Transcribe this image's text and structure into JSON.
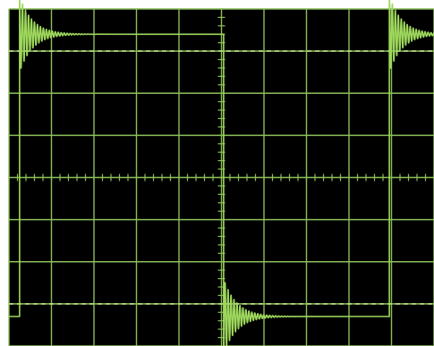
{
  "colors": {
    "background": "#000000",
    "bezel": "#ffffff",
    "grid": "#8bbf5a",
    "dashed_reference": "#b9d88a",
    "trace": "#9ed85c"
  },
  "chart_data": {
    "type": "line",
    "title": "",
    "xlabel": "",
    "ylabel": "",
    "x_divisions": 10,
    "y_divisions": 8,
    "xlim": [
      0,
      10
    ],
    "ylim": [
      -4,
      4
    ],
    "grid": true,
    "minor_ticks_on_center_axes": true,
    "dashed_reference_levels": [
      3,
      -3
    ],
    "series": [
      {
        "waveform": "square",
        "high_level": 3.4,
        "low_level": -3.3,
        "transitions": [
          {
            "x": 0.25,
            "direction": "rising"
          },
          {
            "x": 5.05,
            "direction": "falling"
          },
          {
            "x": 8.95,
            "direction": "rising"
          }
        ],
        "ringing": {
          "overshoot_amplitude_divisions": 0.9,
          "decay_length_divisions": 1.3
        }
      }
    ]
  }
}
